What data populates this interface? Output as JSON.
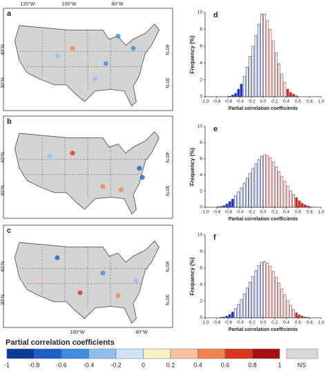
{
  "maps": {
    "panels": [
      {
        "label": "a"
      },
      {
        "label": "b"
      },
      {
        "label": "c"
      }
    ],
    "lon_top": [
      "120°W",
      "100°W",
      "80°W"
    ],
    "lon_bottom": [
      "100°W",
      "80°W"
    ],
    "lat": [
      "40°N",
      "30°N"
    ]
  },
  "colorbar": {
    "title": "Partial correlation coefficients",
    "ticks": [
      -1,
      -0.8,
      -0.6,
      -0.4,
      -0.2,
      0,
      0.2,
      0.4,
      0.6,
      0.8,
      1
    ],
    "colors": [
      "#0b3c9a",
      "#1a5fc8",
      "#3d8de0",
      "#8fbfee",
      "#cfe3f5",
      "#fdf0c8",
      "#f9c29a",
      "#f0844c",
      "#d9381e",
      "#a50f15"
    ],
    "ns_label": "NS",
    "ns_color": "#d9d9d9"
  },
  "chart_data": [
    {
      "type": "histogram",
      "title": "d",
      "xlabel": "Partial correlation coefficients",
      "ylabel": "Frequency (%)",
      "bins": [
        -1,
        -0.95,
        -0.9,
        -0.85,
        -0.8,
        -0.75,
        -0.7,
        -0.65,
        -0.6,
        -0.55,
        -0.5,
        -0.45,
        -0.4,
        -0.35,
        -0.3,
        -0.25,
        -0.2,
        -0.15,
        -0.1,
        -0.05,
        0,
        0.05,
        0.1,
        0.15,
        0.2,
        0.25,
        0.3,
        0.35,
        0.4,
        0.45,
        0.5,
        0.55,
        0.6,
        0.65,
        0.7,
        0.75,
        0.8,
        0.85,
        0.9,
        0.95,
        1
      ],
      "values": [
        0,
        0,
        0,
        0,
        0,
        0,
        0,
        0,
        0.05,
        0.2,
        0.4,
        0.9,
        1.5,
        2.4,
        3.5,
        4.8,
        6.0,
        7.3,
        8.6,
        9.8,
        9.8,
        9.0,
        8.0,
        6.6,
        5.2,
        3.9,
        2.7,
        1.7,
        0.9,
        0.5,
        0.3,
        0.1,
        0,
        0,
        0,
        0,
        0,
        0,
        0,
        0
      ],
      "fill_colors": [
        "#fff",
        "#fff",
        "#fff",
        "#fff",
        "#fff",
        "#fff",
        "#fff",
        "#fff",
        "#1a2fd8",
        "#1a2fd8",
        "#1a2fd8",
        "#1a2fd8",
        "#1a2fd8",
        "#fff",
        "#fff",
        "#fff",
        "#fff",
        "#fff",
        "#fff",
        "#fff",
        "#fff",
        "#fff",
        "#fff",
        "#fff",
        "#fff",
        "#fff",
        "#fff",
        "#fff",
        "#e2231a",
        "#e2231a",
        "#e2231a",
        "#e2231a",
        "#fff",
        "#fff",
        "#fff",
        "#fff",
        "#fff",
        "#fff",
        "#fff",
        "#fff"
      ],
      "edge_colors": [
        "#3b4aa8",
        "#3b4aa8",
        "#3b4aa8",
        "#3b4aa8",
        "#3b4aa8",
        "#3b4aa8",
        "#3b4aa8",
        "#3b4aa8",
        "#3b4aa8",
        "#3b4aa8",
        "#3b4aa8",
        "#3b4aa8",
        "#3b4aa8",
        "#3b4aa8",
        "#3b4aa8",
        "#3b4aa8",
        "#3b4aa8",
        "#3b4aa8",
        "#3b4aa8",
        "#3b4aa8",
        "#b54545",
        "#b54545",
        "#b54545",
        "#b54545",
        "#b54545",
        "#b54545",
        "#b54545",
        "#b54545",
        "#b54545",
        "#b54545",
        "#b54545",
        "#b54545",
        "#b54545",
        "#b54545",
        "#b54545",
        "#b54545",
        "#b54545",
        "#b54545",
        "#b54545",
        "#b54545"
      ],
      "xlim": [
        -1,
        1
      ],
      "ylim": [
        0,
        10
      ],
      "xticks": [
        {
          "value": -1,
          "label": "-1.0"
        },
        -0.8,
        -0.6,
        -0.4,
        -0.2,
        {
          "value": 0,
          "label": "0.0"
        },
        0.2,
        0.4,
        0.6,
        0.8,
        {
          "value": 1,
          "label": "1.0"
        }
      ],
      "yticks": [
        0,
        2,
        4,
        6,
        8,
        10
      ]
    },
    {
      "type": "histogram",
      "title": "e",
      "xlabel": "Partial correlation coefficients",
      "ylabel": "Frequency (%)",
      "bins": [
        -1,
        -0.95,
        -0.9,
        -0.85,
        -0.8,
        -0.75,
        -0.7,
        -0.65,
        -0.6,
        -0.55,
        -0.5,
        -0.45,
        -0.4,
        -0.35,
        -0.3,
        -0.25,
        -0.2,
        -0.15,
        -0.1,
        -0.05,
        0,
        0.05,
        0.1,
        0.15,
        0.2,
        0.25,
        0.3,
        0.35,
        0.4,
        0.45,
        0.5,
        0.55,
        0.6,
        0.65,
        0.7,
        0.75,
        0.8,
        0.85,
        0.9,
        0.95,
        1
      ],
      "values": [
        0,
        0,
        0,
        0,
        0.05,
        0.1,
        0.2,
        0.4,
        0.7,
        1.0,
        1.4,
        1.9,
        2.4,
        3.0,
        3.6,
        4.2,
        4.8,
        5.4,
        5.9,
        6.3,
        6.5,
        6.4,
        6.1,
        5.6,
        5.0,
        4.4,
        3.8,
        3.2,
        2.6,
        2.0,
        1.6,
        1.2,
        0.8,
        0.5,
        0.3,
        0.15,
        0.05,
        0,
        0,
        0
      ],
      "fill_colors": [
        "#fff",
        "#fff",
        "#fff",
        "#fff",
        "#1a2fd8",
        "#1a2fd8",
        "#1a2fd8",
        "#1a2fd8",
        "#1a2fd8",
        "#1a2fd8",
        "#fff",
        "#fff",
        "#fff",
        "#fff",
        "#fff",
        "#fff",
        "#fff",
        "#fff",
        "#fff",
        "#fff",
        "#fff",
        "#fff",
        "#fff",
        "#fff",
        "#fff",
        "#fff",
        "#fff",
        "#fff",
        "#fff",
        "#fff",
        "#fff",
        "#e2231a",
        "#e2231a",
        "#e2231a",
        "#e2231a",
        "#e2231a",
        "#e2231a",
        "#fff",
        "#fff",
        "#fff"
      ],
      "edge_colors": [
        "#3b4aa8",
        "#3b4aa8",
        "#3b4aa8",
        "#3b4aa8",
        "#3b4aa8",
        "#3b4aa8",
        "#3b4aa8",
        "#3b4aa8",
        "#3b4aa8",
        "#3b4aa8",
        "#3b4aa8",
        "#3b4aa8",
        "#3b4aa8",
        "#3b4aa8",
        "#3b4aa8",
        "#3b4aa8",
        "#3b4aa8",
        "#3b4aa8",
        "#3b4aa8",
        "#3b4aa8",
        "#b54545",
        "#b54545",
        "#b54545",
        "#b54545",
        "#b54545",
        "#b54545",
        "#b54545",
        "#b54545",
        "#b54545",
        "#b54545",
        "#b54545",
        "#b54545",
        "#b54545",
        "#b54545",
        "#b54545",
        "#b54545",
        "#b54545",
        "#b54545",
        "#b54545",
        "#b54545"
      ],
      "xlim": [
        -1,
        1
      ],
      "ylim": [
        0,
        10
      ],
      "xticks": [
        {
          "value": -1,
          "label": "-1.0"
        },
        -0.8,
        -0.6,
        -0.4,
        -0.2,
        {
          "value": 0,
          "label": "0.0"
        },
        0.2,
        0.4,
        0.6,
        0.8,
        {
          "value": 1,
          "label": "1.0"
        }
      ],
      "yticks": [
        0,
        2,
        4,
        6,
        8,
        10
      ]
    },
    {
      "type": "histogram",
      "title": "f",
      "xlabel": "Partial correlation coefficients",
      "ylabel": "Frequency (%)",
      "bins": [
        -1,
        -0.95,
        -0.9,
        -0.85,
        -0.8,
        -0.75,
        -0.7,
        -0.65,
        -0.6,
        -0.55,
        -0.5,
        -0.45,
        -0.4,
        -0.35,
        -0.3,
        -0.25,
        -0.2,
        -0.15,
        -0.1,
        -0.05,
        0,
        0.05,
        0.1,
        0.15,
        0.2,
        0.25,
        0.3,
        0.35,
        0.4,
        0.45,
        0.5,
        0.55,
        0.6,
        0.65,
        0.7,
        0.75,
        0.8,
        0.85,
        0.9,
        0.95,
        1
      ],
      "values": [
        0,
        0,
        0,
        0,
        0,
        0.05,
        0.1,
        0.2,
        0.4,
        0.7,
        1.1,
        1.6,
        2.2,
        2.9,
        3.6,
        4.3,
        5.0,
        5.7,
        6.3,
        6.7,
        6.8,
        6.6,
        6.2,
        5.6,
        4.9,
        4.2,
        3.5,
        2.8,
        2.1,
        1.5,
        1.0,
        0.6,
        0.35,
        0.2,
        0.1,
        0.05,
        0,
        0,
        0,
        0
      ],
      "fill_colors": [
        "#fff",
        "#fff",
        "#fff",
        "#fff",
        "#fff",
        "#1a2fd8",
        "#1a2fd8",
        "#1a2fd8",
        "#1a2fd8",
        "#1a2fd8",
        "#fff",
        "#fff",
        "#fff",
        "#fff",
        "#fff",
        "#fff",
        "#fff",
        "#fff",
        "#fff",
        "#fff",
        "#fff",
        "#fff",
        "#fff",
        "#fff",
        "#fff",
        "#fff",
        "#fff",
        "#fff",
        "#fff",
        "#fff",
        "#fff",
        "#e2231a",
        "#e2231a",
        "#e2231a",
        "#e2231a",
        "#e2231a",
        "#fff",
        "#fff",
        "#fff",
        "#fff"
      ],
      "edge_colors": [
        "#3b4aa8",
        "#3b4aa8",
        "#3b4aa8",
        "#3b4aa8",
        "#3b4aa8",
        "#3b4aa8",
        "#3b4aa8",
        "#3b4aa8",
        "#3b4aa8",
        "#3b4aa8",
        "#3b4aa8",
        "#3b4aa8",
        "#3b4aa8",
        "#3b4aa8",
        "#3b4aa8",
        "#3b4aa8",
        "#3b4aa8",
        "#3b4aa8",
        "#3b4aa8",
        "#3b4aa8",
        "#b54545",
        "#b54545",
        "#b54545",
        "#b54545",
        "#b54545",
        "#b54545",
        "#b54545",
        "#b54545",
        "#b54545",
        "#b54545",
        "#b54545",
        "#b54545",
        "#b54545",
        "#b54545",
        "#b54545",
        "#b54545",
        "#b54545",
        "#b54545",
        "#b54545",
        "#b54545"
      ],
      "xlim": [
        -1,
        1
      ],
      "ylim": [
        0,
        10
      ],
      "xticks": [
        {
          "value": -1,
          "label": "-1.0"
        },
        -0.8,
        -0.6,
        -0.4,
        -0.2,
        {
          "value": 0,
          "label": "0.0"
        },
        0.2,
        0.4,
        0.6,
        0.8,
        {
          "value": 1,
          "label": "1.0"
        }
      ],
      "yticks": [
        0,
        2,
        4,
        6,
        8,
        10
      ]
    }
  ]
}
